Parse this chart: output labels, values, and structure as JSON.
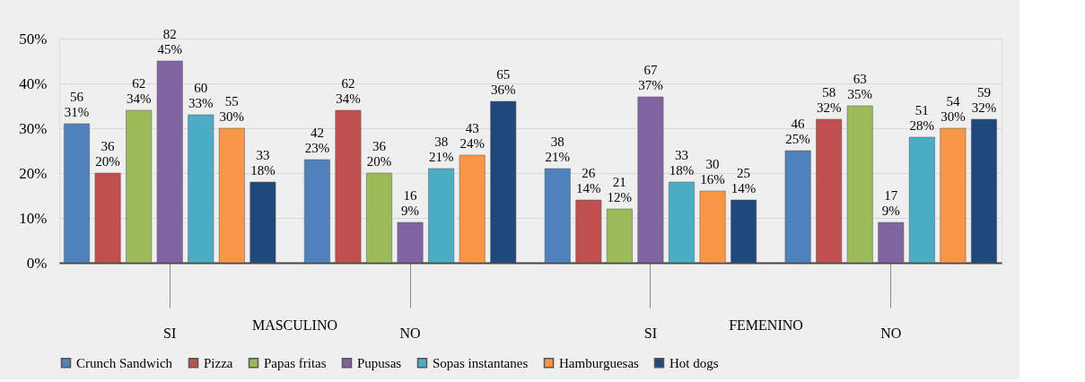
{
  "chart_data": {
    "type": "bar",
    "categories": [
      "SI",
      "NO",
      "SI",
      "NO"
    ],
    "annotations": [
      "MASCULINO",
      "FEMENINO"
    ],
    "ylim": [
      0,
      50
    ],
    "yticks": [
      {
        "value": 0,
        "label": "0%"
      },
      {
        "value": 10,
        "label": "10%"
      },
      {
        "value": 20,
        "label": "20%"
      },
      {
        "value": 30,
        "label": "30%"
      },
      {
        "value": 40,
        "label": "40%"
      },
      {
        "value": 50,
        "label": "50%"
      }
    ],
    "grid": "y",
    "legend": "bottom",
    "series": [
      {
        "name": "Crunch Sandwich",
        "color": "#4f81bd",
        "values": [
          31,
          23,
          21,
          25
        ],
        "value_labels": [
          "56\n31%",
          "42\n23%",
          "38\n21%",
          "46\n25%"
        ]
      },
      {
        "name": "Pizza",
        "color": "#c0504d",
        "values": [
          20,
          34,
          14,
          32
        ],
        "value_labels": [
          "36\n20%",
          "62\n34%",
          "26\n14%",
          "58\n32%"
        ]
      },
      {
        "name": "Papas fritas",
        "color": "#9bbb59",
        "values": [
          34,
          20,
          12,
          35
        ],
        "value_labels": [
          "62\n34%",
          "36\n20%",
          "21\n12%",
          "63\n35%"
        ]
      },
      {
        "name": "Pupusas",
        "color": "#8064a2",
        "values": [
          45,
          9,
          37,
          9
        ],
        "value_labels": [
          "82\n45%",
          "16\n9%",
          "67\n37%",
          "17\n9%"
        ]
      },
      {
        "name": "Sopas instantanes",
        "color": "#4bacc6",
        "values": [
          33,
          21,
          18,
          28
        ],
        "value_labels": [
          "60\n33%",
          "38\n21%",
          "33\n18%",
          "51\n28%"
        ]
      },
      {
        "name": "Hamburguesas",
        "color": "#f79646",
        "values": [
          30,
          24,
          16,
          30
        ],
        "value_labels": [
          "55\n30%",
          "43\n24%",
          "30\n16%",
          "54\n30%"
        ]
      },
      {
        "name": "Hot dogs",
        "color": "#1f497d",
        "values": [
          18,
          36,
          14,
          32
        ],
        "value_labels": [
          "33\n18%",
          "65\n36%",
          "25\n14%",
          "59\n32%"
        ]
      }
    ]
  }
}
